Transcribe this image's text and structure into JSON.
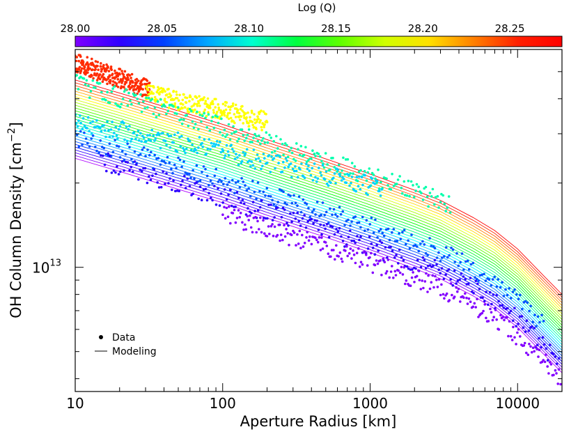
{
  "chart_data": {
    "type": "line",
    "title": "",
    "xlabel": "Aperture Radius [km]",
    "ylabel": "OH Column Density [cm",
    "ylabel_sup": "−2",
    "ylabel_tail": "]",
    "xscale": "log",
    "yscale": "log",
    "xlim": [
      10,
      20000
    ],
    "ylim": [
      3600000000000.0,
      60000000000000.0
    ],
    "x_ticks": [
      {
        "value": 10,
        "label": "10"
      },
      {
        "value": 100,
        "label": "100"
      },
      {
        "value": 1000,
        "label": "1000"
      },
      {
        "value": 10000,
        "label": "10000"
      }
    ],
    "y_ticks": [
      {
        "value": 10000000000000.0,
        "base": "10",
        "exp": "13"
      }
    ],
    "colorbar": {
      "label": "Log (Q)",
      "range": [
        28.0,
        28.28
      ],
      "tick_labels": [
        "28.00",
        "28.05",
        "28.10",
        "28.15",
        "28.20",
        "28.25"
      ],
      "colors": [
        "#7f00ff",
        "#2f00ff",
        "#0040ff",
        "#00a8ff",
        "#00ffd0",
        "#00ff40",
        "#60ff00",
        "#d0ff00",
        "#ffe000",
        "#ff8000",
        "#ff2000",
        "#ff0000"
      ]
    },
    "legend": {
      "position": "bottom-left",
      "entries": [
        {
          "marker": "point",
          "label": "Data"
        },
        {
          "marker": "line",
          "label": "Modeling"
        }
      ]
    },
    "model_series": {
      "log_q_values": [
        28.0,
        28.01,
        28.02,
        28.03,
        28.04,
        28.05,
        28.06,
        28.07,
        28.08,
        28.09,
        28.1,
        28.11,
        28.12,
        28.13,
        28.14,
        28.15,
        28.16,
        28.17,
        28.18,
        28.19,
        28.2,
        28.21,
        28.22,
        28.23,
        28.24,
        28.25,
        28.26,
        28.27,
        28.28
      ],
      "base_profile_x": [
        10,
        20,
        50,
        100,
        200,
        500,
        1000,
        2000,
        3000,
        5000,
        7000,
        10000,
        15000,
        20000
      ],
      "base_profile_y": [
        24500000000000.0,
        22000000000000.0,
        19000000000000.0,
        17000000000000.0,
        15000000000000.0,
        12800000000000.0,
        11300000000000.0,
        9900000000000.0,
        9100000000000.0,
        7900000000000.0,
        7100000000000.0,
        6100000000000.0,
        4900000000000.0,
        4200000000000.0
      ]
    },
    "data_series": [
      {
        "log_q": 28.27,
        "x_range": [
          10,
          32
        ],
        "y_start": 54000000000000.0,
        "y_end": 43000000000000.0
      },
      {
        "log_q": 28.22,
        "x_range": [
          30,
          200
        ],
        "y_start": 42000000000000.0,
        "y_end": 33000000000000.0
      },
      {
        "log_q": 28.12,
        "x_range": [
          10,
          3500
        ],
        "y_start": 45000000000000.0,
        "y_end": 16500000000000.0
      },
      {
        "log_q": 28.09,
        "x_range": [
          10,
          1200
        ],
        "y_start": 33000000000000.0,
        "y_end": 19000000000000.0
      },
      {
        "log_q": 28.06,
        "x_range": [
          10,
          15000
        ],
        "y_start": 29000000000000.0,
        "y_end": 6200000000000.0
      },
      {
        "log_q": 28.03,
        "x_range": [
          15,
          19000
        ],
        "y_start": 24000000000000.0,
        "y_end": 4600000000000.0
      },
      {
        "log_q": 28.01,
        "x_range": [
          100,
          19500
        ],
        "y_start": 15500000000000.0,
        "y_end": 4000000000000.0
      }
    ]
  }
}
